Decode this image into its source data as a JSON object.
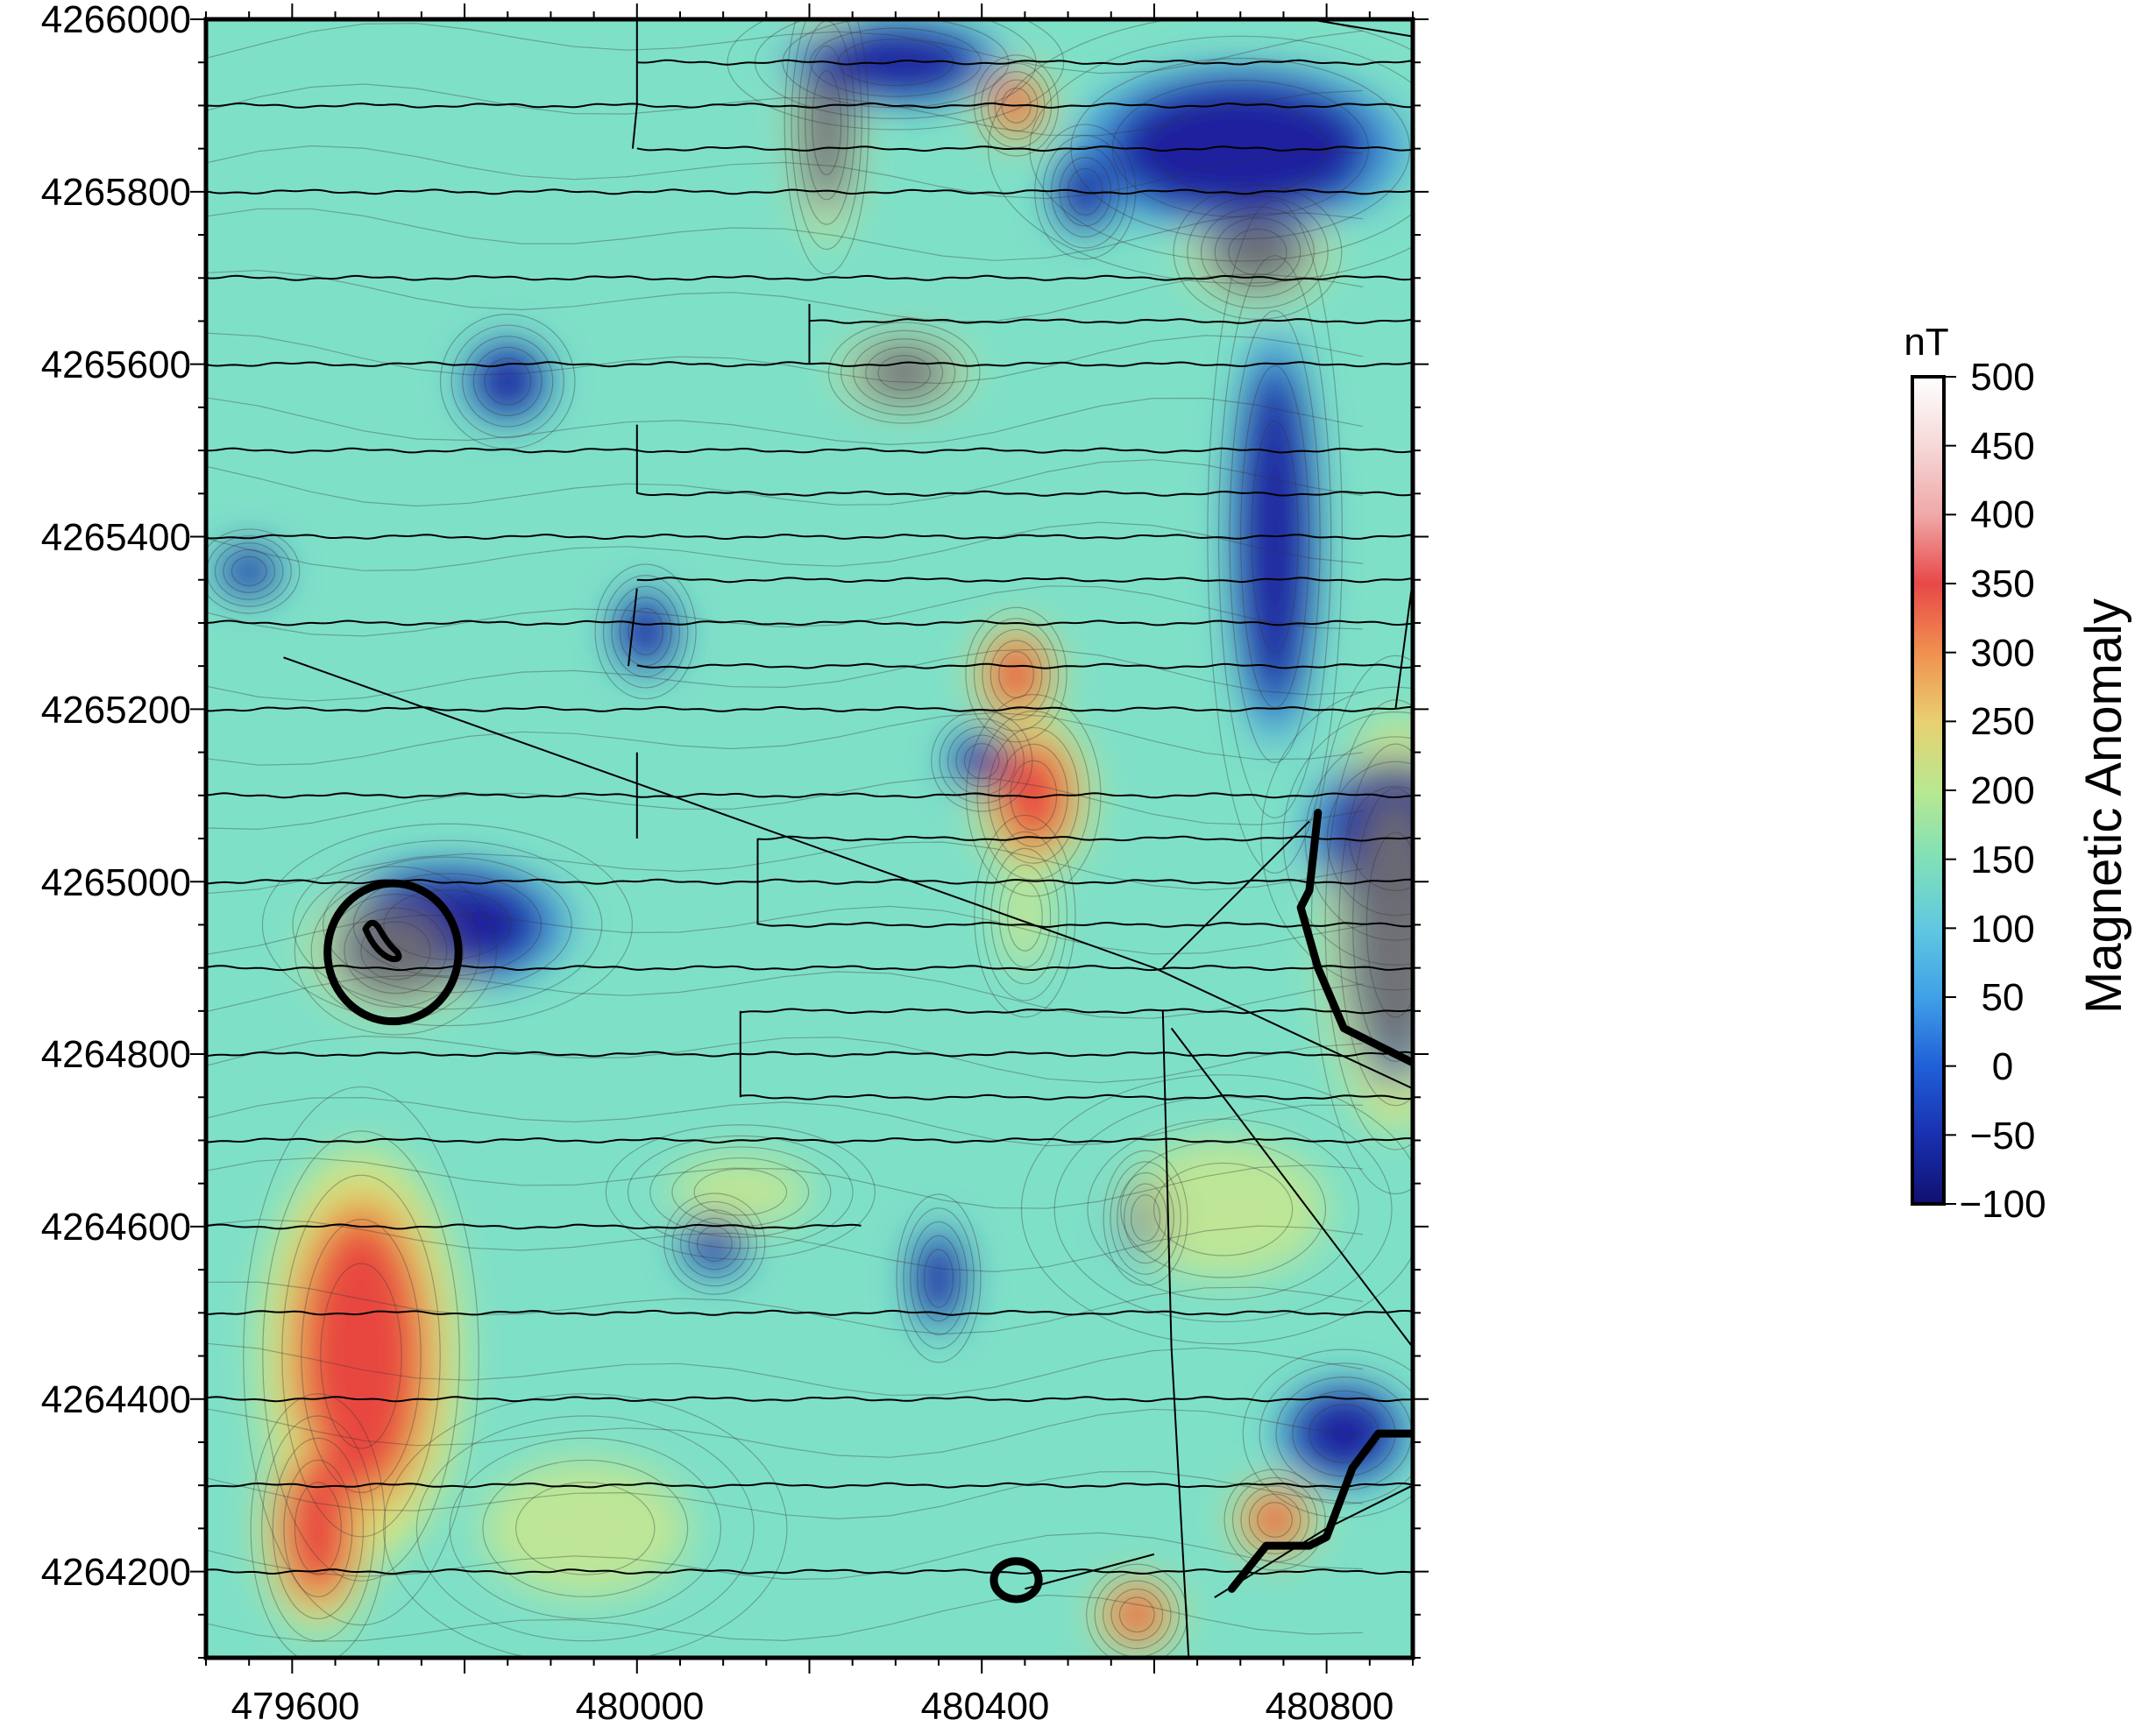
{
  "map": {
    "x_ticks": [
      "479600",
      "480000",
      "480400",
      "480800"
    ],
    "y_ticks": [
      "4266000",
      "4265800",
      "4265600",
      "4265400",
      "4265200",
      "4265000",
      "4264800",
      "4264600",
      "4264400",
      "4264200"
    ],
    "x_range": [
      479500,
      480900
    ],
    "y_range": [
      4264100,
      4266000
    ],
    "colors": {
      "background": "#7fe0c8",
      "blue": "#2f7fe0",
      "dark_blue": "#1a1a9a",
      "yellow": "#d8e880",
      "orange": "#f0a040",
      "red": "#e84040",
      "gray": "#707070",
      "track": "#000000"
    },
    "anomalies": [
      {
        "kind": "high",
        "x": 479680,
        "y": 4264450,
        "rx": 70,
        "ry": 160
      },
      {
        "kind": "high",
        "x": 479630,
        "y": 4264250,
        "rx": 40,
        "ry": 80
      },
      {
        "kind": "low",
        "x": 479780,
        "y": 4264950,
        "rx": 110,
        "ry": 60
      },
      {
        "kind": "gray",
        "x": 479720,
        "y": 4264920,
        "rx": 60,
        "ry": 50
      },
      {
        "kind": "gray",
        "x": 480220,
        "y": 4265880,
        "rx": 25,
        "ry": 90
      },
      {
        "kind": "gray",
        "x": 480310,
        "y": 4265590,
        "rx": 45,
        "ry": 30
      },
      {
        "kind": "low",
        "x": 480880,
        "y": 4265050,
        "rx": 80,
        "ry": 90
      },
      {
        "kind": "gray",
        "x": 480880,
        "y": 4264950,
        "rx": 50,
        "ry": 160
      },
      {
        "kind": "gray",
        "x": 480720,
        "y": 4265730,
        "rx": 50,
        "ry": 40
      },
      {
        "kind": "low",
        "x": 480740,
        "y": 4265400,
        "rx": 40,
        "ry": 200
      },
      {
        "kind": "low",
        "x": 480700,
        "y": 4265850,
        "rx": 150,
        "ry": 80
      },
      {
        "kind": "low",
        "x": 479850,
        "y": 4265580,
        "rx": 40,
        "ry": 40
      },
      {
        "kind": "low",
        "x": 480010,
        "y": 4265290,
        "rx": 30,
        "ry": 40
      },
      {
        "kind": "low",
        "x": 480400,
        "y": 4265140,
        "rx": 30,
        "ry": 30
      },
      {
        "kind": "high",
        "x": 480460,
        "y": 4265100,
        "rx": 40,
        "ry": 60
      },
      {
        "kind": "high",
        "x": 480440,
        "y": 4265240,
        "rx": 30,
        "ry": 40
      },
      {
        "kind": "low",
        "x": 480590,
        "y": 4264610,
        "rx": 25,
        "ry": 40
      },
      {
        "kind": "low",
        "x": 480350,
        "y": 4264540,
        "rx": 25,
        "ry": 50
      },
      {
        "kind": "low",
        "x": 480090,
        "y": 4264580,
        "rx": 30,
        "ry": 30
      },
      {
        "kind": "high",
        "x": 480580,
        "y": 4264150,
        "rx": 30,
        "ry": 30
      },
      {
        "kind": "high",
        "x": 480740,
        "y": 4264260,
        "rx": 30,
        "ry": 30
      },
      {
        "kind": "low",
        "x": 480820,
        "y": 4264360,
        "rx": 60,
        "ry": 50
      },
      {
        "kind": "yellow",
        "x": 480680,
        "y": 4264620,
        "rx": 120,
        "ry": 80
      },
      {
        "kind": "yellow",
        "x": 480120,
        "y": 4264640,
        "rx": 80,
        "ry": 40
      },
      {
        "kind": "yellow",
        "x": 479940,
        "y": 4264250,
        "rx": 120,
        "ry": 80
      },
      {
        "kind": "yellow",
        "x": 480450,
        "y": 4264960,
        "rx": 30,
        "ry": 60
      },
      {
        "kind": "low",
        "x": 480520,
        "y": 4265800,
        "rx": 30,
        "ry": 40
      },
      {
        "kind": "high",
        "x": 480440,
        "y": 4265900,
        "rx": 25,
        "ry": 30
      },
      {
        "kind": "low",
        "x": 479550,
        "y": 4265360,
        "rx": 30,
        "ry": 25
      },
      {
        "kind": "low",
        "x": 480300,
        "y": 4265950,
        "rx": 100,
        "ry": 40
      }
    ]
  },
  "colorbar": {
    "unit": "nT",
    "title": "Magnetic Anomaly",
    "labels": [
      "500",
      "450",
      "400",
      "350",
      "300",
      "250",
      "200",
      "150",
      "100",
      "50",
      "0",
      "−50",
      "−100"
    ],
    "stops": [
      "#ffffff",
      "#f6d8d8",
      "#f0a8a8",
      "#e84848",
      "#f09050",
      "#e8d070",
      "#b8e890",
      "#80e0b8",
      "#60c8e0",
      "#40a0e8",
      "#2060d8",
      "#1830b0",
      "#101070"
    ]
  }
}
